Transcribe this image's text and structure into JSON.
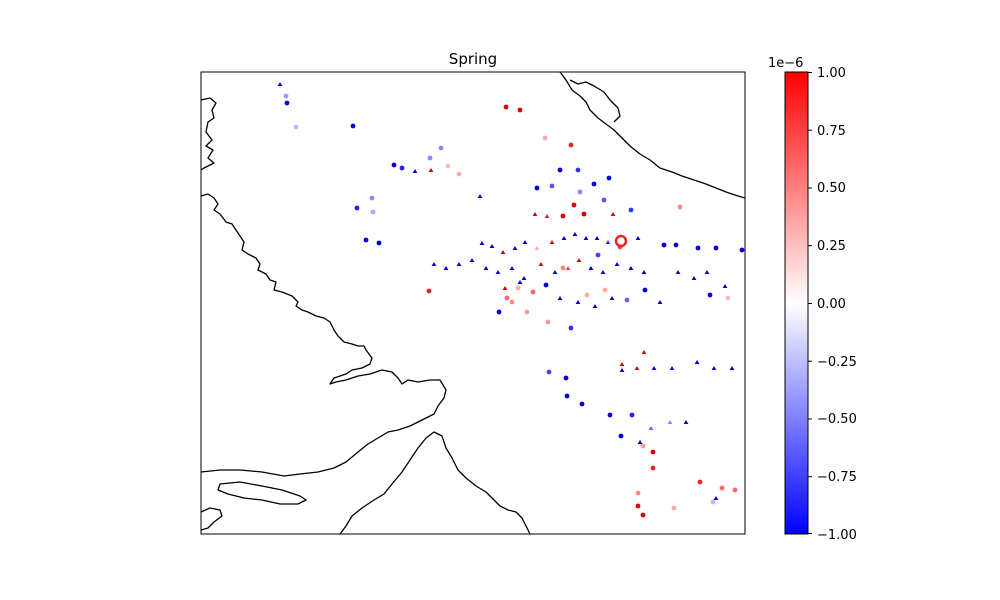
{
  "title": "Spring",
  "colorbar": {
    "offset_label": "1e−6",
    "ticks": [
      "1.00",
      "0.75",
      "0.50",
      "0.25",
      "0.00",
      "−0.25",
      "−0.50",
      "−0.75",
      "−1.00"
    ],
    "tick_values": [
      1.0,
      0.75,
      0.5,
      0.25,
      0.0,
      -0.25,
      -0.5,
      -0.75,
      -1.0
    ],
    "range": [
      -1.0,
      1.0
    ],
    "colormap": [
      "#0000ff",
      "#ffffff",
      "#ff0000"
    ]
  },
  "chart_data": {
    "type": "scatter",
    "title": "Spring",
    "xlabel": "",
    "ylabel": "",
    "color_range": [
      -1.0,
      1.0
    ],
    "color_scale_factor": "1e-6",
    "colormap": "bwr",
    "markers": [
      "circle",
      "triangle"
    ]
  }
}
